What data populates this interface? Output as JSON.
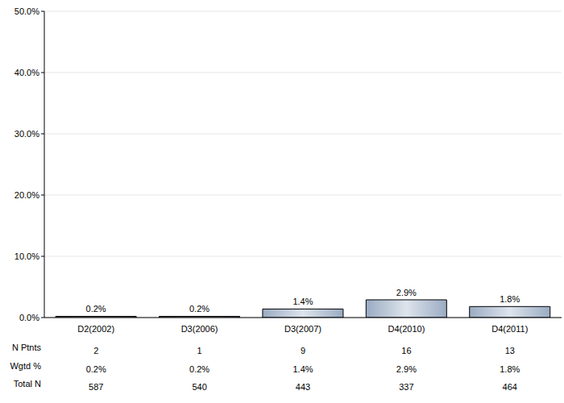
{
  "chart_data": {
    "type": "bar",
    "categories": [
      "D2(2002)",
      "D3(2006)",
      "D3(2007)",
      "D4(2010)",
      "D4(2011)"
    ],
    "values": [
      0.2,
      0.2,
      1.4,
      2.9,
      1.8
    ],
    "value_labels": [
      "0.2%",
      "0.2%",
      "1.4%",
      "2.9%",
      "1.8%"
    ],
    "data_labels": true,
    "color": "#9aabc3",
    "ylim": [
      0,
      50
    ],
    "yticks": [
      {
        "value": 0,
        "label": "0.0%"
      },
      {
        "value": 10,
        "label": "10.0%"
      },
      {
        "value": 20,
        "label": "20.0%"
      },
      {
        "value": 30,
        "label": "30.0%"
      },
      {
        "value": 40,
        "label": "40.0%"
      },
      {
        "value": 50,
        "label": "50.0%"
      }
    ],
    "grid": true
  },
  "table": {
    "rows": [
      {
        "label": "N Ptnts",
        "values": [
          2,
          1,
          9,
          16,
          13
        ]
      },
      {
        "label": "Wgtd %",
        "values": [
          "0.2%",
          "0.2%",
          "1.4%",
          "2.9%",
          "1.8%"
        ]
      },
      {
        "label": "Total N",
        "values": [
          587,
          540,
          443,
          337,
          464
        ]
      }
    ]
  }
}
